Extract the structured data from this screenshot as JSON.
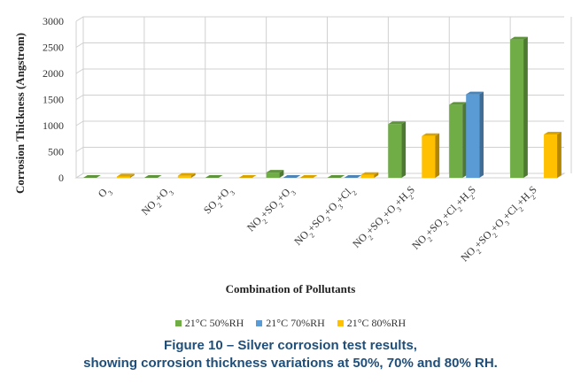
{
  "chart_data": {
    "type": "bar",
    "categories": [
      [
        "O",
        {
          "sub": "3"
        }
      ],
      [
        "NO",
        {
          "sub": "2"
        },
        "+O",
        {
          "sub": "3"
        }
      ],
      [
        "SO",
        {
          "sub": "2"
        },
        "+O",
        {
          "sub": "3"
        }
      ],
      [
        "NO",
        {
          "sub": "2"
        },
        "+SO",
        {
          "sub": "2"
        },
        "+O",
        {
          "sub": "3"
        }
      ],
      [
        "NO",
        {
          "sub": "2"
        },
        "+SO",
        {
          "sub": "2"
        },
        "+O",
        {
          "sub": "3"
        },
        "+Cl",
        {
          "sub": "2"
        }
      ],
      [
        "NO",
        {
          "sub": "2"
        },
        "+SO",
        {
          "sub": "2"
        },
        "+O",
        {
          "sub": "3"
        },
        "+H",
        {
          "sub": "2"
        },
        "S"
      ],
      [
        "NO",
        {
          "sub": "2"
        },
        "+SO",
        {
          "sub": "2"
        },
        "+Cl",
        {
          "sub": "2"
        },
        "+H",
        {
          "sub": "2"
        },
        "S"
      ],
      [
        "NO",
        {
          "sub": "2"
        },
        "+SO",
        {
          "sub": "2"
        },
        "+O",
        {
          "sub": "3"
        },
        "+Cl",
        {
          "sub": "2"
        },
        "+H",
        {
          "sub": "2"
        },
        "S"
      ]
    ],
    "series": [
      {
        "name": "21°C 50%RH",
        "color": "#70ad47",
        "values": [
          0,
          0,
          0,
          100,
          0,
          1030,
          1400,
          2650
        ]
      },
      {
        "name": "21°C 70%RH",
        "color": "#5b9bd5",
        "values": [
          null,
          null,
          null,
          0,
          0,
          null,
          1600,
          null
        ]
      },
      {
        "name": "21°C 80%RH",
        "color": "#ffc000",
        "values": [
          25,
          40,
          0,
          0,
          55,
          800,
          null,
          830
        ]
      }
    ],
    "ylabel": "Corrosion Thickness (Angstrom)",
    "xlabel": "Combination of Pollutants",
    "ylim": [
      0,
      3000
    ],
    "yticks": [
      0,
      500,
      1000,
      1500,
      2000,
      2500,
      3000
    ],
    "grid": true,
    "legend": "bottom"
  },
  "caption": {
    "line1": "Figure 10 – Silver corrosion test results,",
    "line2": "showing corrosion thickness variations at 50%, 70% and 80% RH."
  }
}
